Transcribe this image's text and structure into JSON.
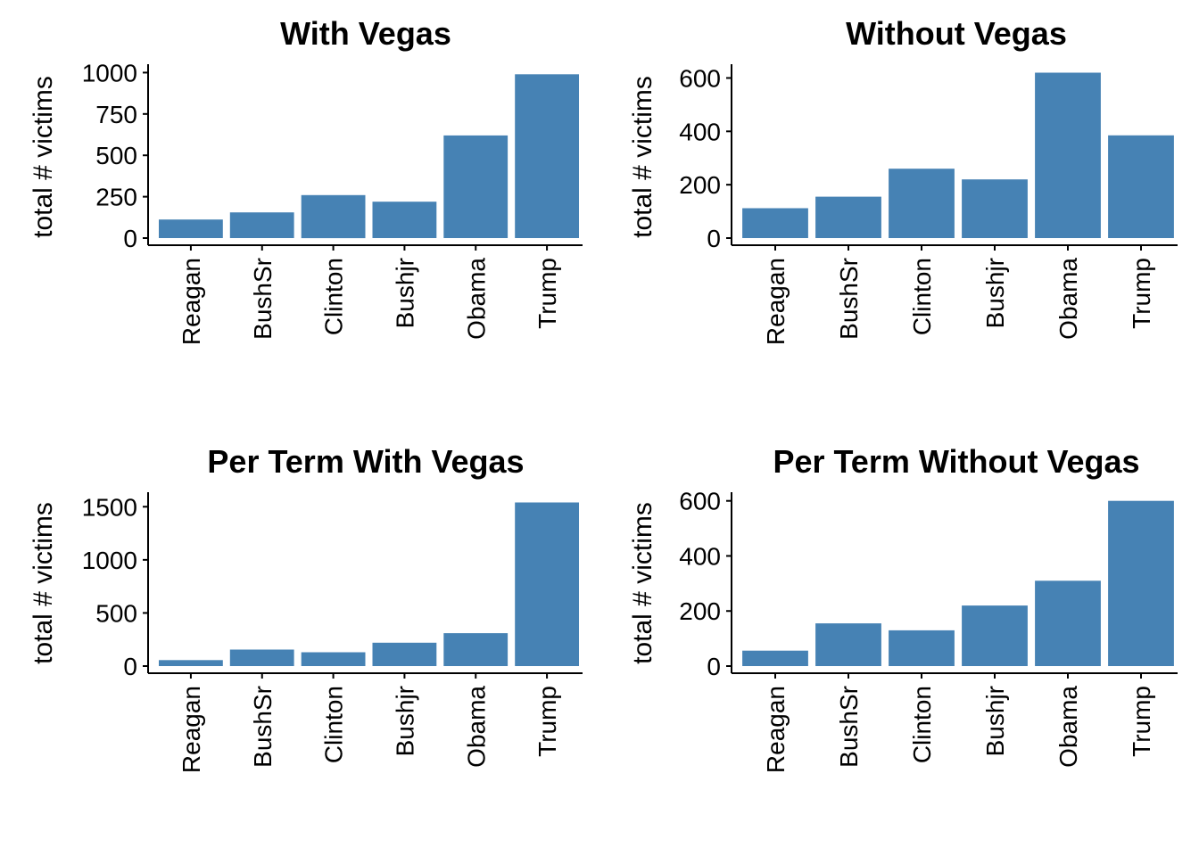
{
  "chart_data": [
    {
      "type": "bar",
      "title": "With Vegas",
      "xlabel": "",
      "ylabel": "total # victims",
      "categories": [
        "Reagan",
        "BushSr",
        "Clinton",
        "Bushjr",
        "Obama",
        "Trump"
      ],
      "values": [
        112,
        155,
        260,
        220,
        620,
        990
      ],
      "yticks": [
        0,
        250,
        500,
        750,
        1000
      ],
      "ylim": [
        0,
        1040
      ],
      "color": "#4682B4",
      "grid": false,
      "legend": "none"
    },
    {
      "type": "bar",
      "title": "Without Vegas",
      "xlabel": "",
      "ylabel": "total # victims",
      "categories": [
        "Reagan",
        "BushSr",
        "Clinton",
        "Bushjr",
        "Obama",
        "Trump"
      ],
      "values": [
        112,
        155,
        260,
        220,
        620,
        385
      ],
      "yticks": [
        0,
        200,
        400,
        600
      ],
      "ylim": [
        0,
        645
      ],
      "color": "#4682B4",
      "grid": false,
      "legend": "none"
    },
    {
      "type": "bar",
      "title": "Per Term With Vegas",
      "xlabel": "",
      "ylabel": "total # victims",
      "categories": [
        "Reagan",
        "BushSr",
        "Clinton",
        "Bushjr",
        "Obama",
        "Trump"
      ],
      "values": [
        56,
        155,
        130,
        220,
        310,
        1540
      ],
      "yticks": [
        0,
        500,
        1000,
        1500
      ],
      "ylim": [
        0,
        1620
      ],
      "color": "#4682B4",
      "grid": false,
      "legend": "none"
    },
    {
      "type": "bar",
      "title": "Per Term Without Vegas",
      "xlabel": "",
      "ylabel": "total # victims",
      "categories": [
        "Reagan",
        "BushSr",
        "Clinton",
        "Bushjr",
        "Obama",
        "Trump"
      ],
      "values": [
        56,
        155,
        130,
        220,
        310,
        600
      ],
      "yticks": [
        0,
        200,
        400,
        600
      ],
      "ylim": [
        0,
        625
      ],
      "color": "#4682B4",
      "grid": false,
      "legend": "none"
    }
  ]
}
